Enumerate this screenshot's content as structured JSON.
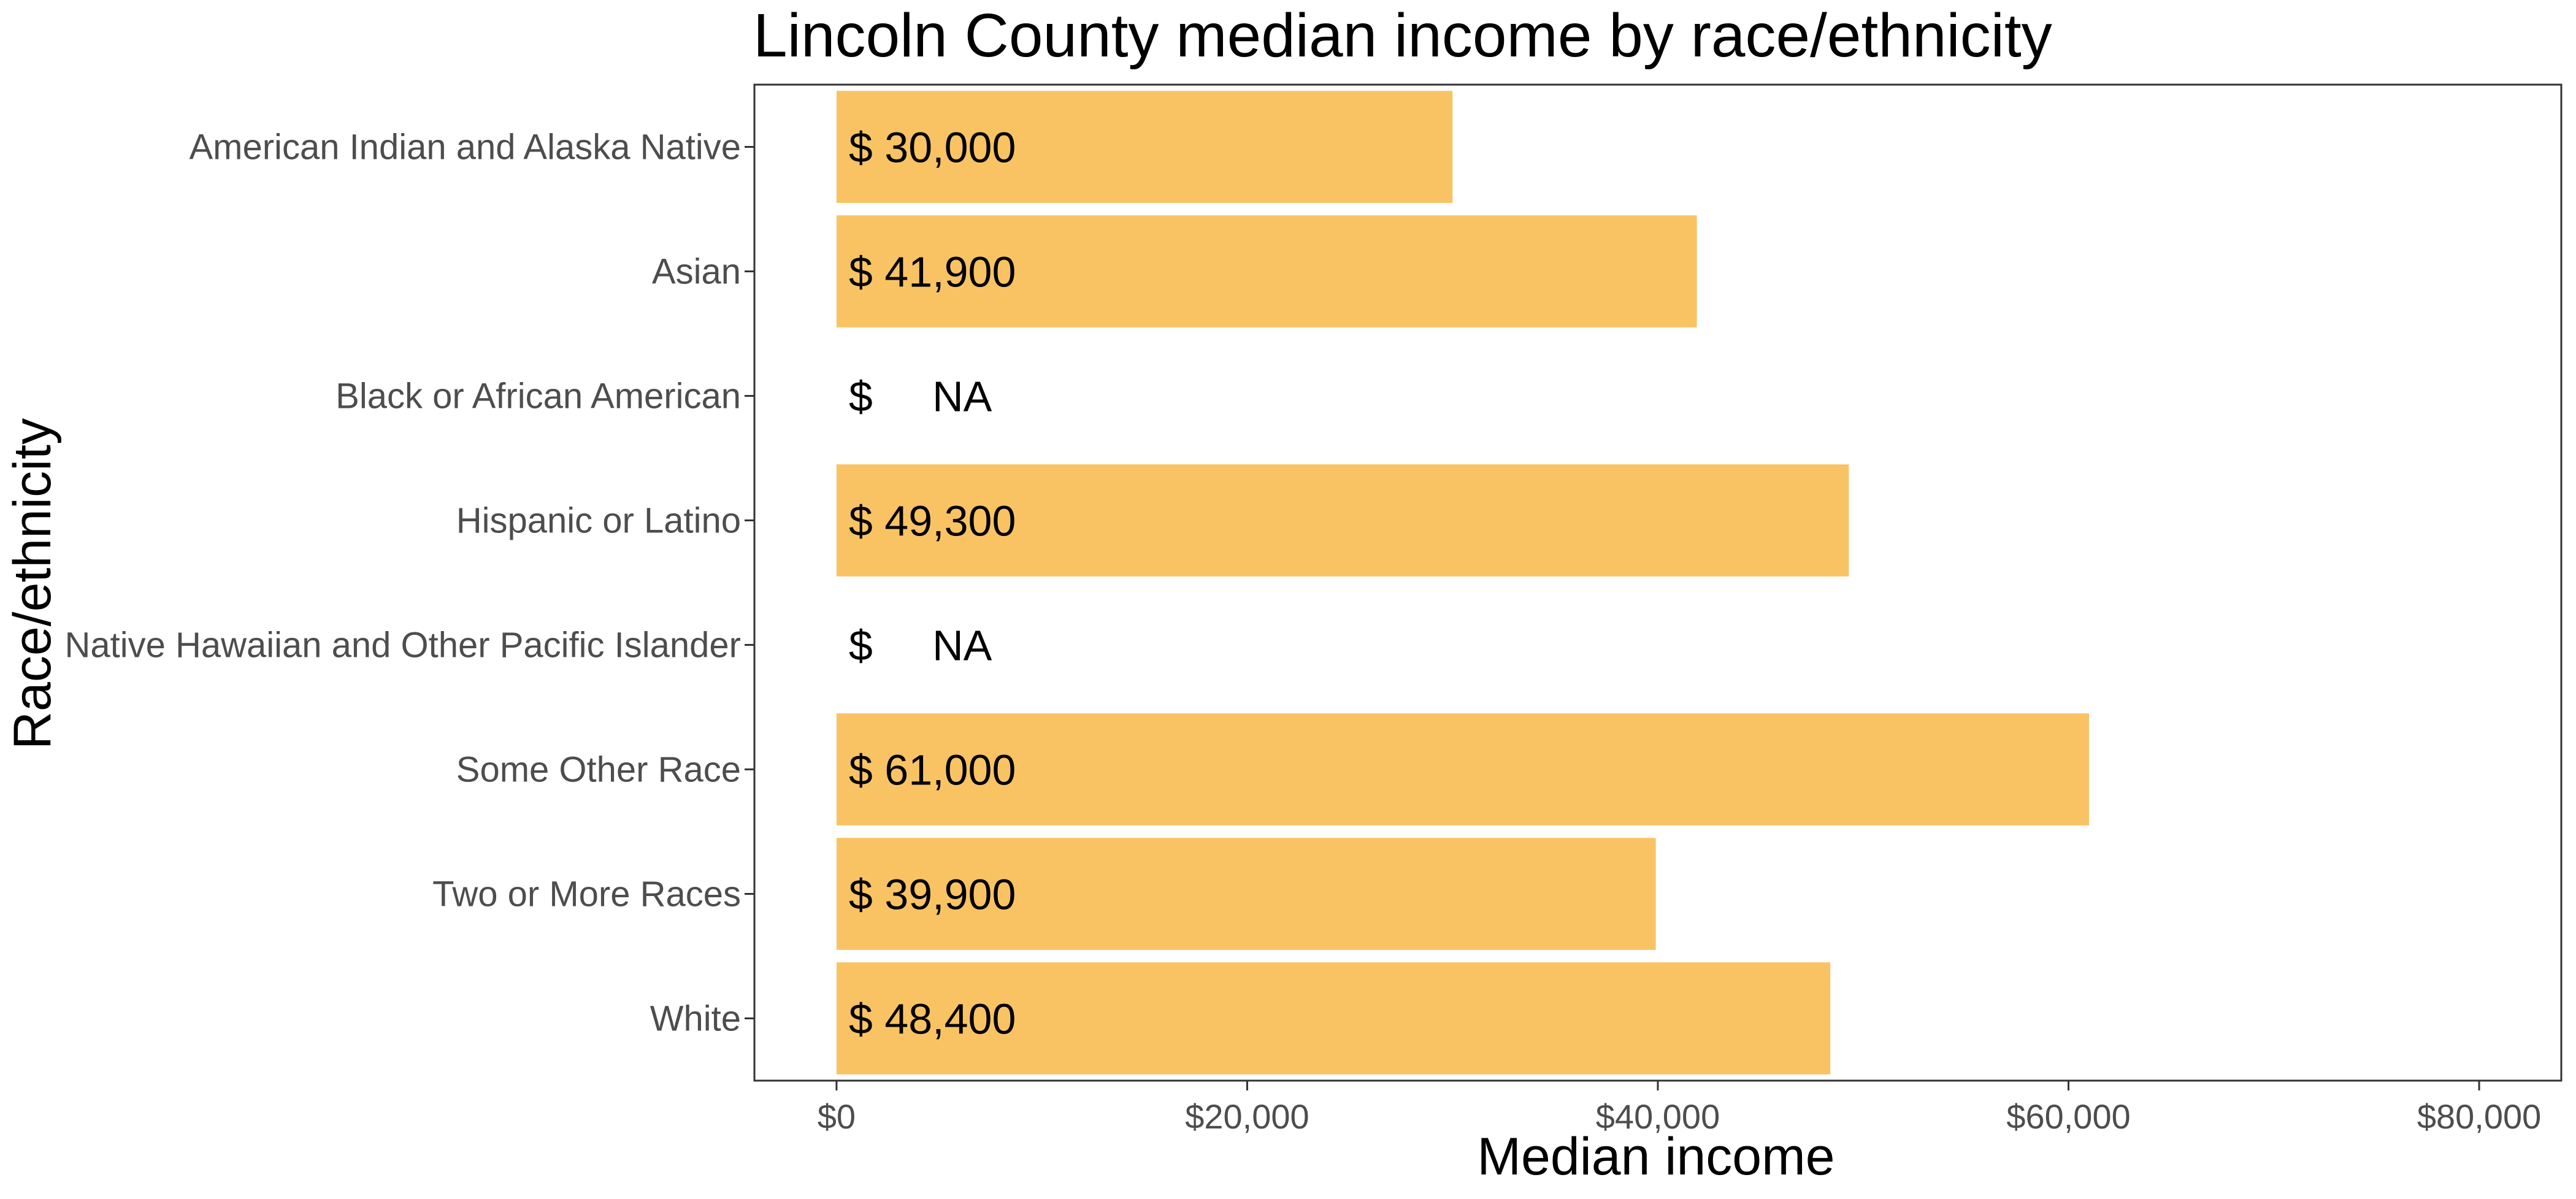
{
  "chart_data": {
    "type": "bar",
    "orientation": "horizontal",
    "title": "Lincoln County median income by race/ethnicity",
    "xlabel": "Median income",
    "ylabel": "Race/ethnicity",
    "categories": [
      "American Indian and Alaska Native",
      "Asian",
      "Black or African American",
      "Hispanic or Latino",
      "Native Hawaiian and Other Pacific Islander",
      "Some Other Race",
      "Two or More Races",
      "White"
    ],
    "values": [
      30000,
      41900,
      null,
      49300,
      null,
      61000,
      39900,
      48400
    ],
    "value_labels": [
      "$ 30,000",
      "$ 41,900",
      "$     NA",
      "$ 49,300",
      "$     NA",
      "$ 61,000",
      "$ 39,900",
      "$ 48,400"
    ],
    "xlim": [
      -4000,
      84000
    ],
    "x_ticks": [
      0,
      20000,
      40000,
      60000,
      80000
    ],
    "x_tick_labels": [
      "$0",
      "$20,000",
      "$40,000",
      "$60,000",
      "$80,000"
    ],
    "bar_color": "#F9C364",
    "grid": false,
    "legend": "none"
  }
}
